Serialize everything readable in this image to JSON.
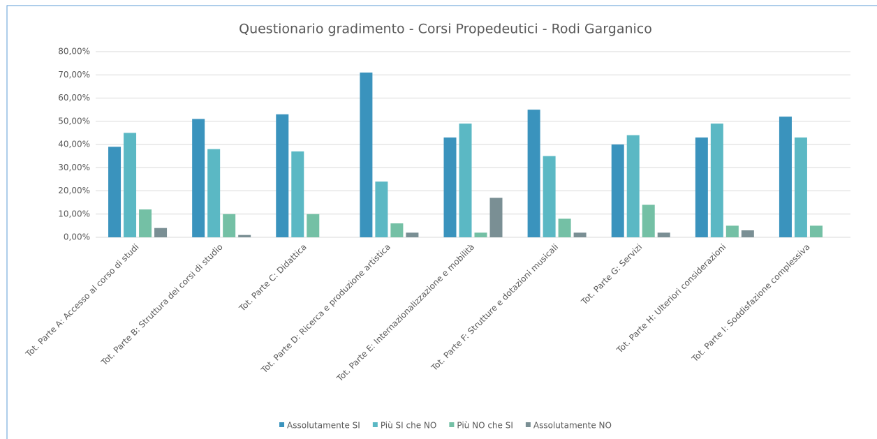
{
  "chart_data": {
    "type": "bar",
    "title": "Questionario gradimento - Corsi Propedeutici - Rodi Garganico",
    "categories": [
      "Tot. Parte A: Accesso al corso di studi",
      "Tot. Parte B: Struttura dei corsi di studio",
      "Tot. Parte C: Didattica",
      "Tot. Parte D: Ricerca e produzione artistica",
      "Tot. Parte E: Internazionalizzazione e mobilità",
      "Tot. Parte F: Strutture e dotazioni musicali",
      "Tot. Parte G: Servizi",
      "Tot. Parte H: Ulteriori considerazioni",
      "Tot. Parte I: Soddisfazione complessiva"
    ],
    "series": [
      {
        "name": "Assolutamente SI",
        "color": "#3a93bd",
        "values": [
          39,
          51,
          53,
          71,
          43,
          55,
          40,
          43,
          52
        ]
      },
      {
        "name": "Più SI che NO",
        "color": "#5bb8c4",
        "values": [
          45,
          38,
          37,
          24,
          49,
          35,
          44,
          49,
          43
        ]
      },
      {
        "name": "Più NO che SI",
        "color": "#74c0a5",
        "values": [
          12,
          10,
          10,
          6,
          2,
          8,
          14,
          5,
          5
        ]
      },
      {
        "name": "Assolutamente NO",
        "color": "#7a8f94",
        "values": [
          4,
          1,
          0,
          2,
          17,
          2,
          2,
          3,
          0
        ]
      }
    ],
    "ylim": [
      0,
      80
    ],
    "yticks": [
      {
        "value": 0,
        "label": "0,00%"
      },
      {
        "value": 10,
        "label": "10,00%"
      },
      {
        "value": 20,
        "label": "20,00%"
      },
      {
        "value": 30,
        "label": "30,00%"
      },
      {
        "value": 40,
        "label": "40,00%"
      },
      {
        "value": 50,
        "label": "50,00%"
      },
      {
        "value": 60,
        "label": "60,00%"
      },
      {
        "value": 70,
        "label": "70,00%"
      },
      {
        "value": 80,
        "label": "80,00%"
      }
    ],
    "grid": true,
    "legend": "bottom"
  }
}
